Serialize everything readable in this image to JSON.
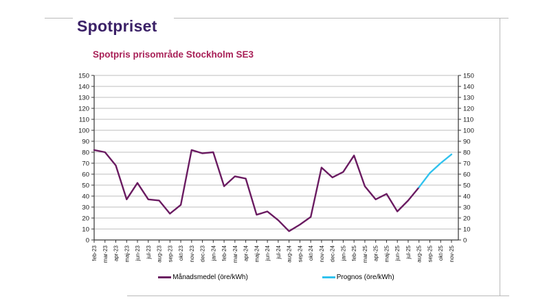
{
  "page": {
    "title": "Spotpriset",
    "colors": {
      "main_title": "#3b2167",
      "chart_title": "#a82057",
      "monthly_line": "#6a1b61",
      "forecast_line": "#30c2ee",
      "gridline": "#a9a9a9",
      "axis": "#333333",
      "frame": "#b9b9b9"
    }
  },
  "chart_data": {
    "type": "line",
    "title": "Spotpris prisområde Stockholm SE3",
    "xlabel": "",
    "ylabel": "",
    "ylim": [
      0,
      150
    ],
    "ytick_step": 10,
    "grid": true,
    "legend_position": "bottom",
    "categories": [
      "feb-23",
      "mar-23",
      "apr-23",
      "maj-23",
      "jun-23",
      "jul-23",
      "aug-23",
      "sep-23",
      "okt-23",
      "nov-23",
      "dec-23",
      "jan-24",
      "feb-24",
      "mar-24",
      "apr-24",
      "maj-24",
      "jun-24",
      "jul-24",
      "aug-24",
      "sep-24",
      "okt-24",
      "nov-24",
      "dec-24",
      "jan-25",
      "feb-25",
      "mar-25",
      "apr-25",
      "maj-25",
      "jun-25",
      "jul-25",
      "aug-25",
      "sep-25",
      "okt-25",
      "nov-25"
    ],
    "series": [
      {
        "name": "Månadsmedel (öre/kWh)",
        "color": "#6a1b61",
        "values": [
          82,
          80,
          68,
          37,
          52,
          37,
          36,
          24,
          32,
          82,
          79,
          80,
          49,
          58,
          56,
          23,
          26,
          18,
          8,
          14,
          21,
          66,
          57,
          62,
          77,
          49,
          37,
          42,
          26,
          36,
          48,
          null,
          null,
          null
        ]
      },
      {
        "name": "Prognos (öre/kWh)",
        "color": "#30c2ee",
        "values": [
          null,
          null,
          null,
          null,
          null,
          null,
          null,
          null,
          null,
          null,
          null,
          null,
          null,
          null,
          null,
          null,
          null,
          null,
          null,
          null,
          null,
          null,
          null,
          null,
          null,
          null,
          null,
          null,
          null,
          null,
          48,
          61,
          70,
          78
        ]
      }
    ]
  },
  "legend": {
    "items": [
      {
        "label": "Månadsmedel (öre/kWh)",
        "color": "#6a1b61"
      },
      {
        "label": "Prognos (öre/kWh)",
        "color": "#30c2ee"
      }
    ]
  }
}
